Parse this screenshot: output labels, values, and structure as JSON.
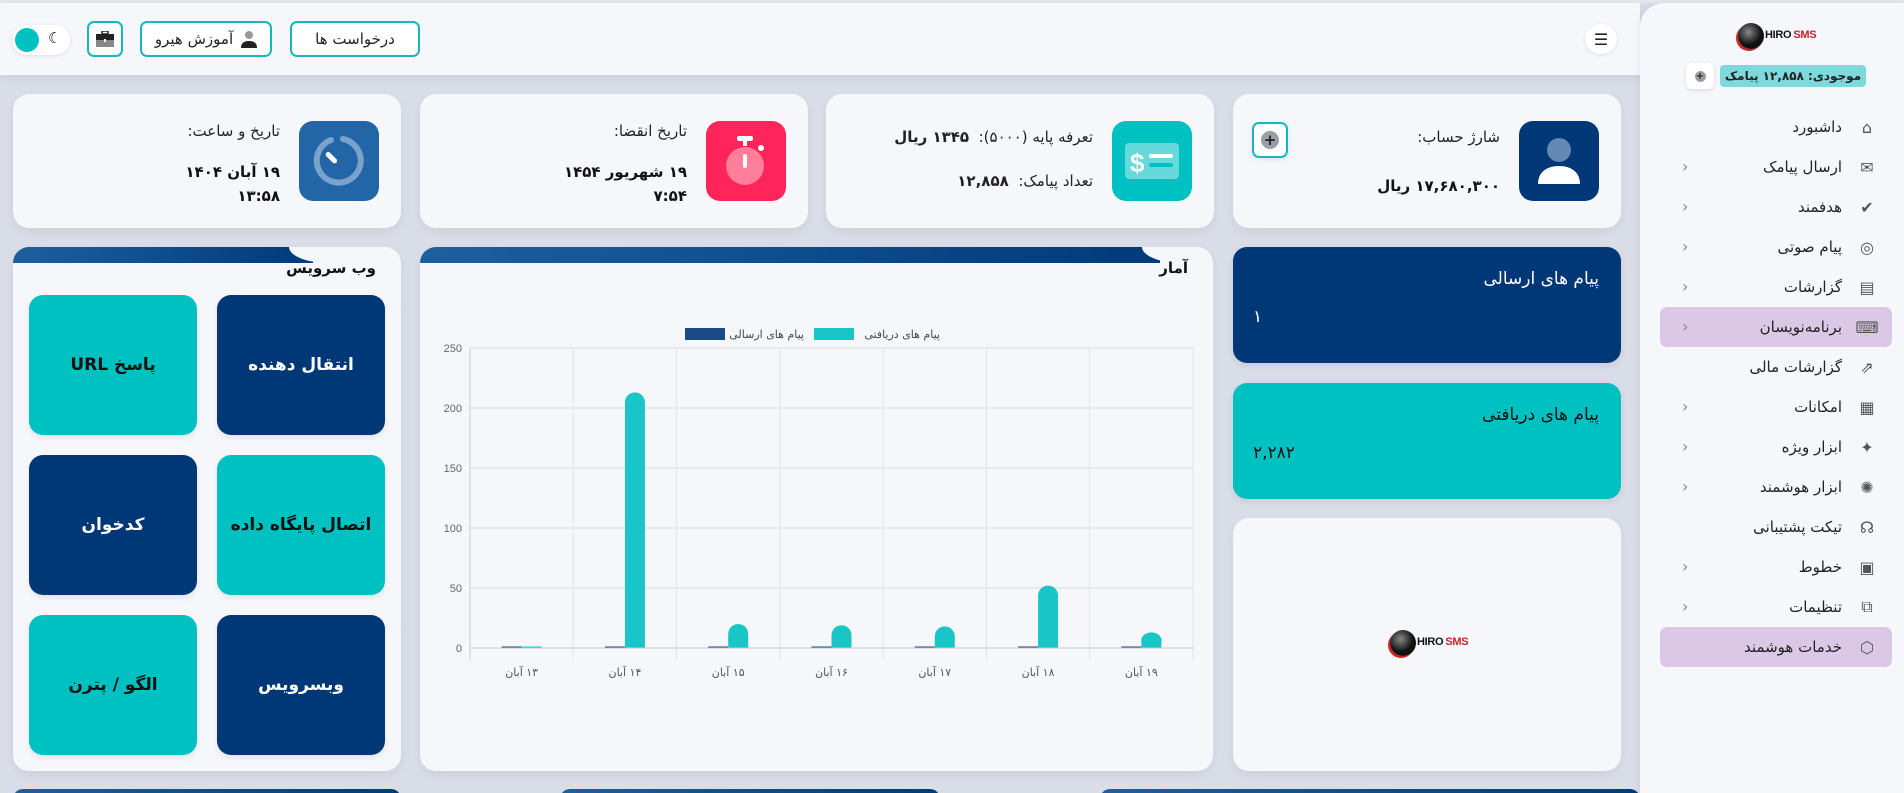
{
  "header": {
    "requests_label": "درخواست ها",
    "training_label": "آموزش هیرو",
    "menu_icon": "hamburger-icon",
    "briefcase_icon": "briefcase-icon",
    "theme_icon": "moon-icon"
  },
  "sidebar": {
    "logo_text_a": "HIRO",
    "logo_text_b": "SMS",
    "balance": "موجودی: ۱۲,۸۵۸ پیامک",
    "items": [
      {
        "label": "داشبورد",
        "icon": "home-icon",
        "chevron": false,
        "active": false
      },
      {
        "label": "ارسال پیامک",
        "icon": "sms-icon",
        "chevron": true,
        "active": false
      },
      {
        "label": "هدفمند",
        "icon": "targeted-message-icon",
        "chevron": true,
        "active": false
      },
      {
        "label": "پیام صوتی",
        "icon": "voicemail-icon",
        "chevron": true,
        "active": false
      },
      {
        "label": "گزارشات",
        "icon": "report-icon",
        "chevron": true,
        "active": false
      },
      {
        "label": "برنامه‌نویسان",
        "icon": "developer-icon",
        "chevron": true,
        "active": true
      },
      {
        "label": "گزارشات مالی",
        "icon": "financial-report-icon",
        "chevron": false,
        "active": false
      },
      {
        "label": "امکانات",
        "icon": "features-icon",
        "chevron": true,
        "active": false
      },
      {
        "label": "ابزار ویژه",
        "icon": "sparkle-icon",
        "chevron": true,
        "active": false
      },
      {
        "label": "ابزار هوشمند",
        "icon": "lightbulb-icon",
        "chevron": true,
        "active": false
      },
      {
        "label": "تیکت پشتیبانی",
        "icon": "support-agent-icon",
        "chevron": false,
        "active": false
      },
      {
        "label": "خطوط",
        "icon": "sim-card-icon",
        "chevron": true,
        "active": false
      },
      {
        "label": "تنظیمات",
        "icon": "settings-sliders-icon",
        "chevron": true,
        "active": false
      },
      {
        "label": "خدمات هوشمند",
        "icon": "box-icon",
        "chevron": false,
        "active": true
      }
    ]
  },
  "stats": {
    "account": {
      "title": "شارژ حساب:",
      "value": "۱۷,۶۸۰,۳۰۰ ریال"
    },
    "tariff": {
      "title1": "تعرفه پایه (۵۰۰۰):",
      "value1": "۱۳۴۵ ریال",
      "title2": "تعداد پیامک:",
      "value2": "۱۲,۸۵۸"
    },
    "expiry": {
      "title": "تاریخ انقضا:",
      "value_date": "۱۹ شهریور ۱۴۵۴",
      "value_time": "۷:۵۴"
    },
    "now": {
      "title": "تاریخ و ساعت:",
      "value_date": "۱۹ آبان ۱۴۰۴",
      "value_time": "۱۳:۵۸"
    }
  },
  "messages": {
    "sent": {
      "label": "پیام های ارسالی",
      "value": "۱"
    },
    "received": {
      "label": "پیام های دریافتی",
      "value": "۲,۲۸۲"
    }
  },
  "webservice": {
    "title": "وب سرویس",
    "tiles": [
      {
        "label": "انتقال دهنده",
        "style": "dark"
      },
      {
        "label": "پاسخ URL",
        "style": "teal"
      },
      {
        "label": "اتصال پایگاه داده",
        "style": "teal"
      },
      {
        "label": "کدخوان",
        "style": "dark"
      },
      {
        "label": "وبسرویس",
        "style": "dark"
      },
      {
        "label": "الگو / پترن",
        "style": "teal"
      }
    ]
  },
  "stats_chart": {
    "title": "آمار"
  },
  "colors": {
    "navy": "#003777",
    "teal": "#00c1c2",
    "red": "#ff2459",
    "blue": "#2266a8"
  },
  "chart_data": {
    "type": "bar",
    "title": "آمار",
    "categories": [
      "۱۳ آبان",
      "۱۴ آبان",
      "۱۵ آبان",
      "۱۶ آبان",
      "۱۷ آبان",
      "۱۸ آبان",
      "۱۹ آبان"
    ],
    "series": [
      {
        "name": "پیام های ارسالی",
        "color": "#1b4a86",
        "values": [
          0,
          0,
          0,
          0,
          0,
          0,
          1
        ]
      },
      {
        "name": "پیام های دریافتی",
        "color": "#19c5c7",
        "values": [
          0,
          213,
          20,
          19,
          18,
          52,
          13
        ]
      }
    ],
    "yticks": [
      0,
      50,
      100,
      150,
      200,
      250
    ],
    "ylim": [
      0,
      250
    ],
    "grid": true,
    "legend_position": "top"
  }
}
